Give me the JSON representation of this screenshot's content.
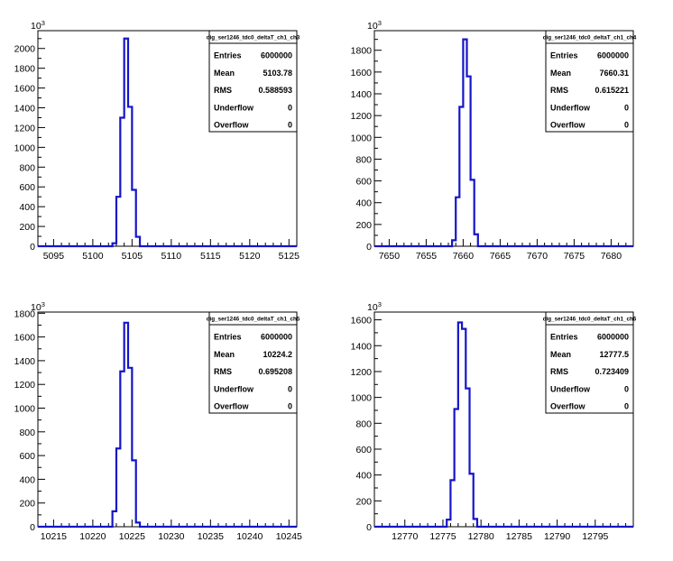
{
  "colors": {
    "line": "#1515c8",
    "axis": "#000000",
    "box_border": "#000000"
  },
  "chart_data": [
    {
      "type": "bar",
      "title": "dig_ser1246_tdc0_deltaT_ch1_ch3",
      "y_multiplier": "10",
      "y_multiplier_exp": "3",
      "xlim": [
        5093,
        5126
      ],
      "ylim": [
        0,
        2180
      ],
      "x_ticks": [
        5095,
        5100,
        5105,
        5110,
        5115,
        5120,
        5125
      ],
      "y_ticks": [
        0,
        200,
        400,
        600,
        800,
        1000,
        1200,
        1400,
        1600,
        1800,
        2000
      ],
      "bins": {
        "x": [
          5102.5,
          5103.0,
          5103.5,
          5104.0,
          5104.5,
          5105.0,
          5105.5
        ],
        "values": [
          30,
          500,
          1300,
          2100,
          1410,
          570,
          95
        ]
      },
      "stats": [
        {
          "label": "Entries",
          "value": "6000000"
        },
        {
          "label": "Mean",
          "value": "5103.78"
        },
        {
          "label": "RMS",
          "value": "0.588593"
        },
        {
          "label": "Underflow",
          "value": "0"
        },
        {
          "label": "Overflow",
          "value": "0"
        }
      ]
    },
    {
      "type": "bar",
      "title": "dig_ser1246_tdc0_deltaT_ch1_ch4",
      "y_multiplier": "10",
      "y_multiplier_exp": "3",
      "xlim": [
        7648,
        7683
      ],
      "ylim": [
        0,
        1980
      ],
      "x_ticks": [
        7650,
        7655,
        7660,
        7665,
        7670,
        7675,
        7680
      ],
      "y_ticks": [
        0,
        200,
        400,
        600,
        800,
        1000,
        1200,
        1400,
        1600,
        1800
      ],
      "bins": {
        "x": [
          7658.5,
          7659.0,
          7659.5,
          7660.0,
          7660.5,
          7661.0,
          7661.5
        ],
        "values": [
          55,
          450,
          1280,
          1900,
          1560,
          610,
          110
        ]
      },
      "stats": [
        {
          "label": "Entries",
          "value": "6000000"
        },
        {
          "label": "Mean",
          "value": "7660.31"
        },
        {
          "label": "RMS",
          "value": "0.615221"
        },
        {
          "label": "Underflow",
          "value": "0"
        },
        {
          "label": "Overflow",
          "value": "0"
        }
      ]
    },
    {
      "type": "bar",
      "title": "dig_ser1246_tdc0_deltaT_ch1_ch5",
      "y_multiplier": "10",
      "y_multiplier_exp": "3",
      "xlim": [
        10213,
        10246
      ],
      "ylim": [
        0,
        1810
      ],
      "x_ticks": [
        10215,
        10220,
        10225,
        10230,
        10235,
        10240,
        10245
      ],
      "y_ticks": [
        0,
        200,
        400,
        600,
        800,
        1000,
        1200,
        1400,
        1600,
        1800
      ],
      "bins": {
        "x": [
          10222.5,
          10223.0,
          10223.5,
          10224.0,
          10224.5,
          10225.0,
          10225.5
        ],
        "values": [
          130,
          660,
          1310,
          1720,
          1340,
          560,
          35
        ]
      },
      "stats": [
        {
          "label": "Entries",
          "value": "6000000"
        },
        {
          "label": "Mean",
          "value": "10224.2"
        },
        {
          "label": "RMS",
          "value": "0.695208"
        },
        {
          "label": "Underflow",
          "value": "0"
        },
        {
          "label": "Overflow",
          "value": "0"
        }
      ]
    },
    {
      "type": "bar",
      "title": "dig_ser1246_tdc0_deltaT_ch1_ch6",
      "y_multiplier": "10",
      "y_multiplier_exp": "3",
      "xlim": [
        12766,
        12800
      ],
      "ylim": [
        0,
        1660
      ],
      "x_ticks": [
        12770,
        12775,
        12780,
        12785,
        12790,
        12795
      ],
      "y_ticks": [
        0,
        200,
        400,
        600,
        800,
        1000,
        1200,
        1400,
        1600
      ],
      "bins": {
        "x": [
          12775.5,
          12776.0,
          12776.5,
          12777.0,
          12777.5,
          12778.0,
          12778.5,
          12779.0
        ],
        "values": [
          55,
          360,
          910,
          1580,
          1530,
          1070,
          410,
          60
        ]
      },
      "stats": [
        {
          "label": "Entries",
          "value": "6000000"
        },
        {
          "label": "Mean",
          "value": "12777.5"
        },
        {
          "label": "RMS",
          "value": "0.723409"
        },
        {
          "label": "Underflow",
          "value": "0"
        },
        {
          "label": "Overflow",
          "value": "0"
        }
      ]
    }
  ]
}
